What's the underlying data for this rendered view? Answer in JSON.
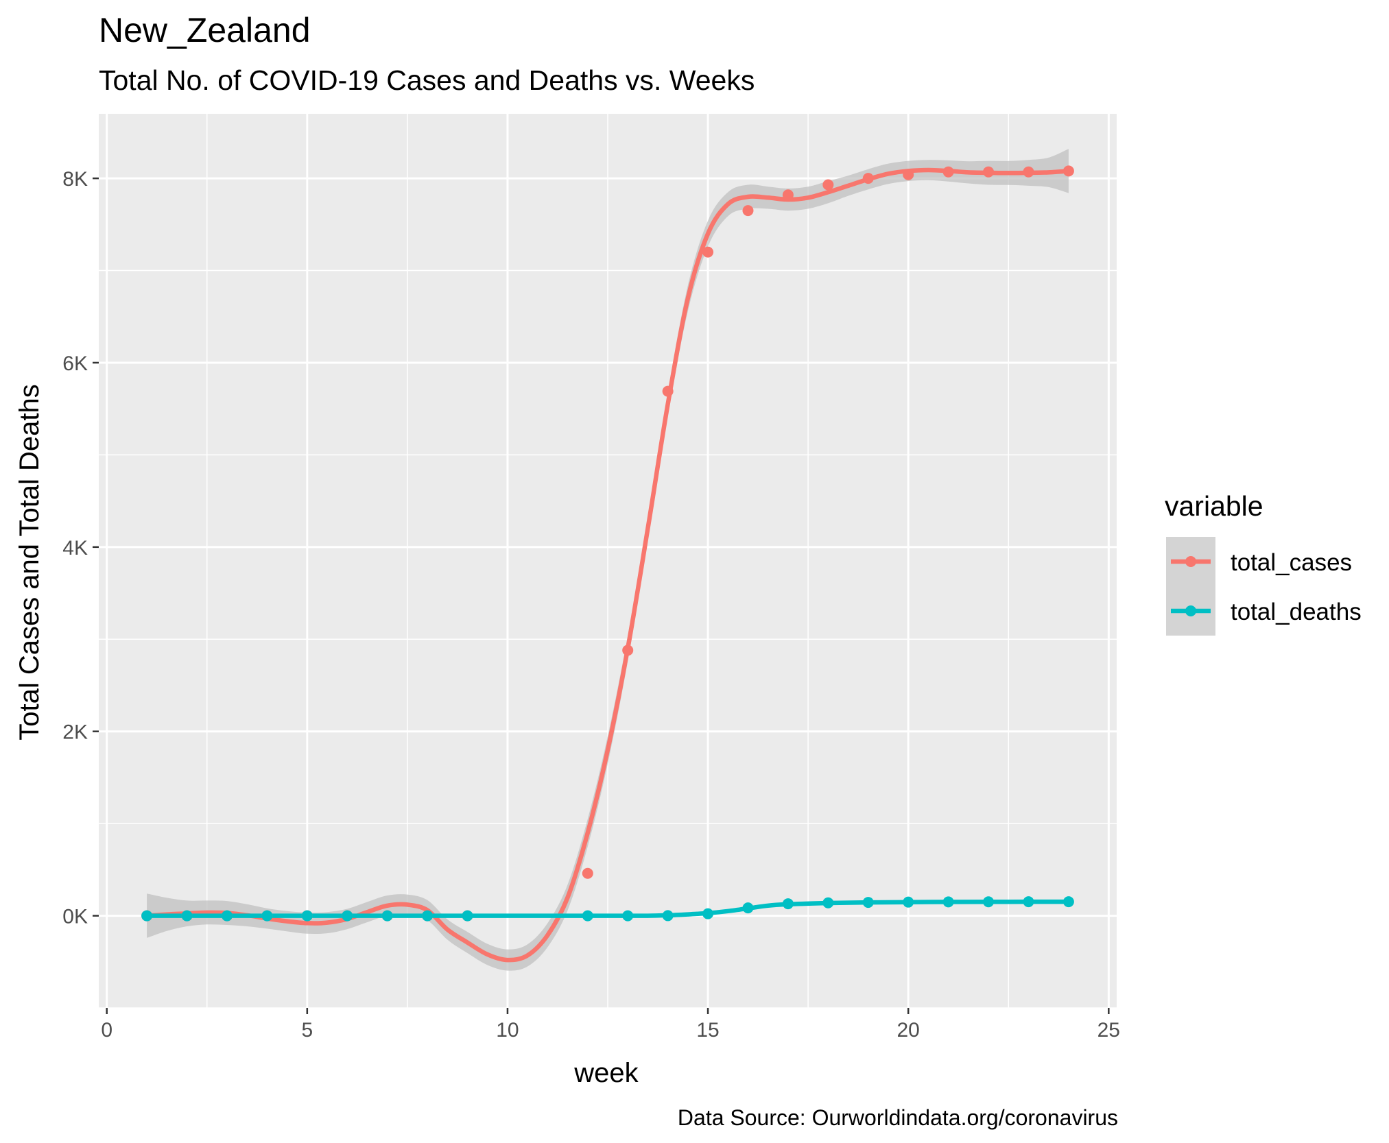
{
  "title": "New_Zealand",
  "subtitle": "Total No. of COVID-19 Cases and Deaths vs. Weeks",
  "caption": "Data Source: Ourworldindata.org/coronavirus",
  "colors": {
    "total_cases": "#F8766D",
    "total_deaths": "#00BFC4",
    "panel": "#EBEBEB",
    "ribbon": "#BEBEBE"
  },
  "legend": {
    "title": "variable",
    "placement": "right",
    "items": [
      {
        "key": "total_cases",
        "label": "total_cases"
      },
      {
        "key": "total_deaths",
        "label": "total_deaths"
      }
    ]
  },
  "chart_data": {
    "type": "line",
    "title": "New_Zealand",
    "subtitle": "Total No. of COVID-19 Cases and Deaths vs. Weeks",
    "xlabel": "week",
    "ylabel": "Total Cases and Total Deaths",
    "xlim": [
      -0.2,
      25.2
    ],
    "ylim": [
      -1000,
      8700
    ],
    "xticks": [
      0,
      5,
      10,
      15,
      20,
      25
    ],
    "xtick_labels": [
      "0",
      "5",
      "10",
      "15",
      "20",
      "25"
    ],
    "yticks": [
      0,
      2000,
      4000,
      6000,
      8000
    ],
    "ytick_labels": [
      "0K",
      "2K",
      "4K",
      "6K",
      "8K"
    ],
    "grid": true,
    "x": [
      1,
      2,
      3,
      4,
      5,
      6,
      7,
      8,
      9,
      10,
      11,
      12,
      13,
      14,
      15,
      16,
      17,
      18,
      19,
      20,
      21,
      22,
      23,
      24
    ],
    "series": [
      {
        "name": "total_cases",
        "points_x": [
          1,
          2,
          3,
          4,
          5,
          6,
          7,
          8,
          9,
          12,
          13,
          14,
          15,
          16,
          17,
          18,
          19,
          20,
          21,
          22,
          23,
          24
        ],
        "points_y": [
          0,
          0,
          0,
          0,
          0,
          0,
          0,
          0,
          0,
          460,
          2880,
          5690,
          7200,
          7650,
          7820,
          7930,
          8000,
          8040,
          8070,
          8070,
          8070,
          8080
        ],
        "smooth_x": [
          1,
          1.5,
          2,
          2.5,
          3,
          3.5,
          4,
          4.5,
          5,
          5.5,
          6,
          6.5,
          7,
          7.5,
          8,
          8.5,
          9,
          9.5,
          10,
          10.5,
          11,
          11.5,
          12,
          12.5,
          13,
          13.5,
          14,
          14.5,
          15,
          15.5,
          16,
          16.5,
          17,
          17.5,
          18,
          18.5,
          19,
          19.5,
          20,
          20.5,
          21,
          21.5,
          22,
          22.5,
          23,
          23.5,
          24
        ],
        "smooth_y": [
          0,
          15,
          25,
          35,
          30,
          5,
          -30,
          -60,
          -80,
          -75,
          -35,
          40,
          110,
          120,
          60,
          -150,
          -290,
          -420,
          -480,
          -430,
          -210,
          200,
          900,
          1800,
          2900,
          4200,
          5550,
          6700,
          7400,
          7720,
          7800,
          7790,
          7770,
          7790,
          7850,
          7920,
          7990,
          8050,
          8080,
          8090,
          8080,
          8065,
          8060,
          8058,
          8060,
          8065,
          8080
        ],
        "ribbon_halfwidth": [
          240,
          180,
          140,
          130,
          130,
          120,
          110,
          110,
          115,
          115,
          110,
          110,
          110,
          110,
          110,
          110,
          115,
          115,
          115,
          120,
          130,
          140,
          150,
          150,
          140,
          130,
          130,
          140,
          140,
          130,
          130,
          120,
          120,
          120,
          120,
          110,
          110,
          110,
          110,
          110,
          115,
          120,
          130,
          130,
          140,
          160,
          240
        ]
      },
      {
        "name": "total_deaths",
        "points_x": [
          1,
          2,
          3,
          4,
          5,
          6,
          7,
          8,
          9,
          12,
          13,
          14,
          15,
          16,
          17,
          18,
          19,
          20,
          21,
          22,
          23,
          24
        ],
        "points_y": [
          0,
          0,
          0,
          0,
          0,
          0,
          0,
          0,
          0,
          0,
          0,
          1,
          22,
          85,
          130,
          140,
          145,
          148,
          150,
          151,
          152,
          152
        ],
        "smooth_x": [
          1,
          2,
          3,
          4,
          5,
          6,
          7,
          8,
          9,
          10,
          11,
          12,
          13,
          13.5,
          14,
          14.5,
          15,
          15.5,
          16,
          16.5,
          17,
          18,
          19,
          20,
          21,
          22,
          23,
          24
        ],
        "smooth_y": [
          0,
          0,
          0,
          0,
          0,
          0,
          0,
          0,
          0,
          0,
          0,
          0,
          0,
          0,
          5,
          15,
          28,
          50,
          80,
          110,
          125,
          138,
          145,
          148,
          150,
          151,
          152,
          152
        ]
      }
    ]
  }
}
